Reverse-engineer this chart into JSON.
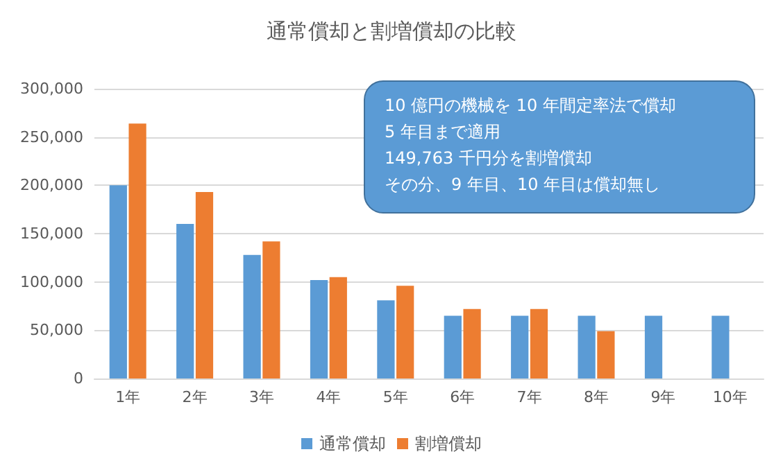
{
  "chart_data": {
    "type": "bar",
    "title": "通常償却と割増償却の比較",
    "categories": [
      "1年",
      "2年",
      "3年",
      "4年",
      "5年",
      "6年",
      "7年",
      "8年",
      "9年",
      "10年"
    ],
    "series": [
      {
        "name": "通常償却",
        "color": "#5b9bd5",
        "values": [
          200000,
          160000,
          128000,
          102000,
          81000,
          65000,
          65000,
          65000,
          65000,
          65000
        ]
      },
      {
        "name": "割増償却",
        "color": "#ed7d31",
        "values": [
          264000,
          193000,
          142000,
          105000,
          96000,
          72000,
          72000,
          49000,
          null,
          null
        ]
      }
    ],
    "ylim": [
      0,
      300000
    ],
    "yticks": [
      0,
      {
        "value": 50000,
        "label": "50,000"
      },
      {
        "value": 100000,
        "label": "100,000"
      },
      {
        "value": 150000,
        "label": "150,000"
      },
      {
        "value": 200000,
        "label": "200,000"
      },
      {
        "value": 250000,
        "label": "250,000"
      },
      {
        "value": 300000,
        "label": "300,000"
      }
    ],
    "grid": "y",
    "legend": "bottom",
    "annotations": [
      "10 億円の機械を 10 年間定率法で償却",
      "5 年目まで適用",
      "149,763 千円分を割増償却",
      "その分、9 年目、10 年目は償却無し"
    ]
  }
}
